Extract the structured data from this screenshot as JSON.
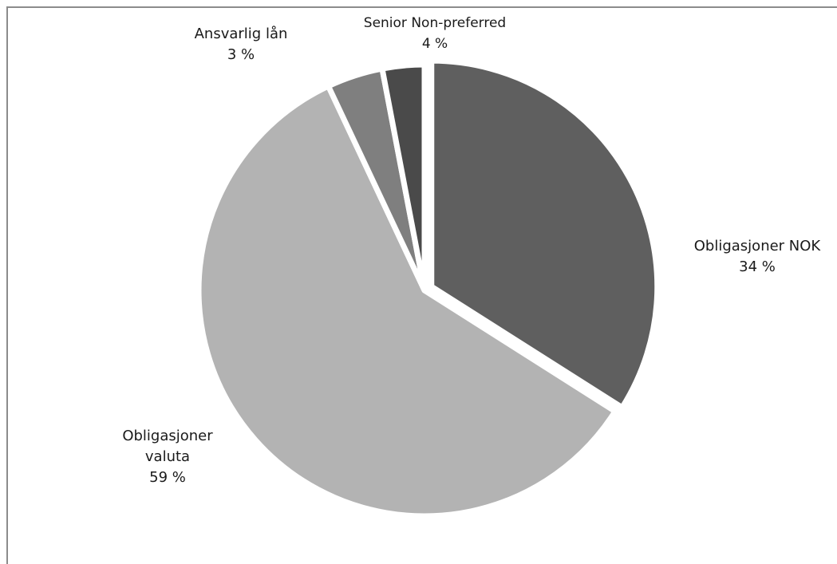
{
  "chart_data": {
    "type": "pie",
    "title": "",
    "slices": [
      {
        "label": "Obligasjoner NOK",
        "value": 34,
        "value_label": "34 %",
        "color": "#5f5f5f",
        "exploded": true
      },
      {
        "label": "Obligasjoner valuta",
        "value": 59,
        "value_label": "59 %",
        "color": "#b3b3b3",
        "exploded": false
      },
      {
        "label": "Senior Non-preferred",
        "value": 4,
        "value_label": "4 %",
        "color": "#7f7f7f",
        "exploded": false
      },
      {
        "label": "Ansvarlig lån",
        "value": 3,
        "value_label": "3 %",
        "color": "#4a4a4a",
        "exploded": false
      }
    ],
    "start_angle": "12 o'clock",
    "direction": "clockwise",
    "legend": "none",
    "grid": false
  }
}
